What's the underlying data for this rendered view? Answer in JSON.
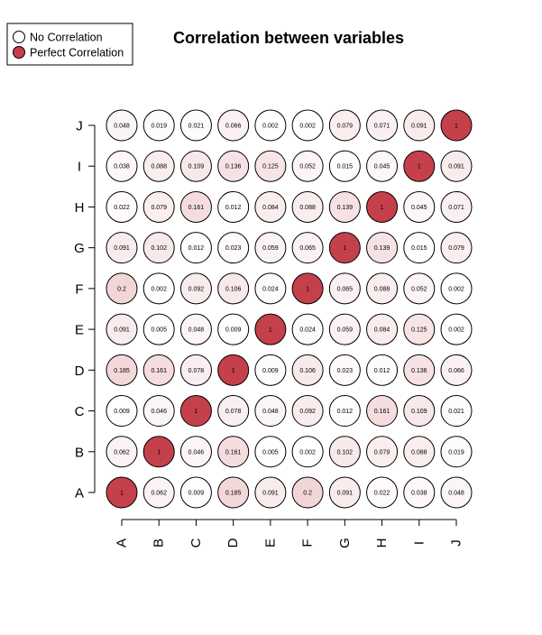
{
  "chart_data": {
    "type": "heatmap",
    "title": "Correlation between variables",
    "legend": {
      "placement": "top-left",
      "entries": [
        {
          "label": "No Correlation",
          "color": "#ffffff"
        },
        {
          "label": "Perfect Correlation",
          "color": "#c4404b"
        }
      ]
    },
    "x_categories": [
      "A",
      "B",
      "C",
      "D",
      "E",
      "F",
      "G",
      "H",
      "I",
      "J"
    ],
    "y_categories": [
      "A",
      "B",
      "C",
      "D",
      "E",
      "F",
      "G",
      "H",
      "I",
      "J"
    ],
    "values": [
      [
        "1",
        "0.062",
        "0.009",
        "0.185",
        "0.091",
        "0.2",
        "0.091",
        "0.022",
        "0.038",
        "0.048"
      ],
      [
        "0.062",
        "1",
        "0.046",
        "0.161",
        "0.005",
        "0.002",
        "0.102",
        "0.079",
        "0.088",
        "0.019"
      ],
      [
        "0.009",
        "0.046",
        "1",
        "0.078",
        "0.048",
        "0.092",
        "0.012",
        "0.161",
        "0.109",
        "0.021"
      ],
      [
        "0.185",
        "0.161",
        "0.078",
        "1",
        "0.009",
        "0.106",
        "0.023",
        "0.012",
        "0.136",
        "0.066"
      ],
      [
        "0.091",
        "0.005",
        "0.048",
        "0.009",
        "1",
        "0.024",
        "0.059",
        "0.084",
        "0.125",
        "0.002"
      ],
      [
        "0.2",
        "0.002",
        "0.092",
        "0.106",
        "0.024",
        "1",
        "0.065",
        "0.088",
        "0.052",
        "0.002"
      ],
      [
        "0.091",
        "0.102",
        "0.012",
        "0.023",
        "0.059",
        "0.065",
        "1",
        "0.139",
        "0.015",
        "0.079"
      ],
      [
        "0.022",
        "0.079",
        "0.161",
        "0.012",
        "0.084",
        "0.088",
        "0.139",
        "1",
        "0.045",
        "0.071"
      ],
      [
        "0.038",
        "0.088",
        "0.109",
        "0.136",
        "0.125",
        "0.052",
        "0.015",
        "0.045",
        "1",
        "0.091"
      ],
      [
        "0.048",
        "0.019",
        "0.021",
        "0.066",
        "0.002",
        "0.002",
        "0.079",
        "0.071",
        "0.091",
        "1"
      ]
    ],
    "color_scale": {
      "low": "#ffffff",
      "high": "#c4404b"
    },
    "grid": false
  }
}
